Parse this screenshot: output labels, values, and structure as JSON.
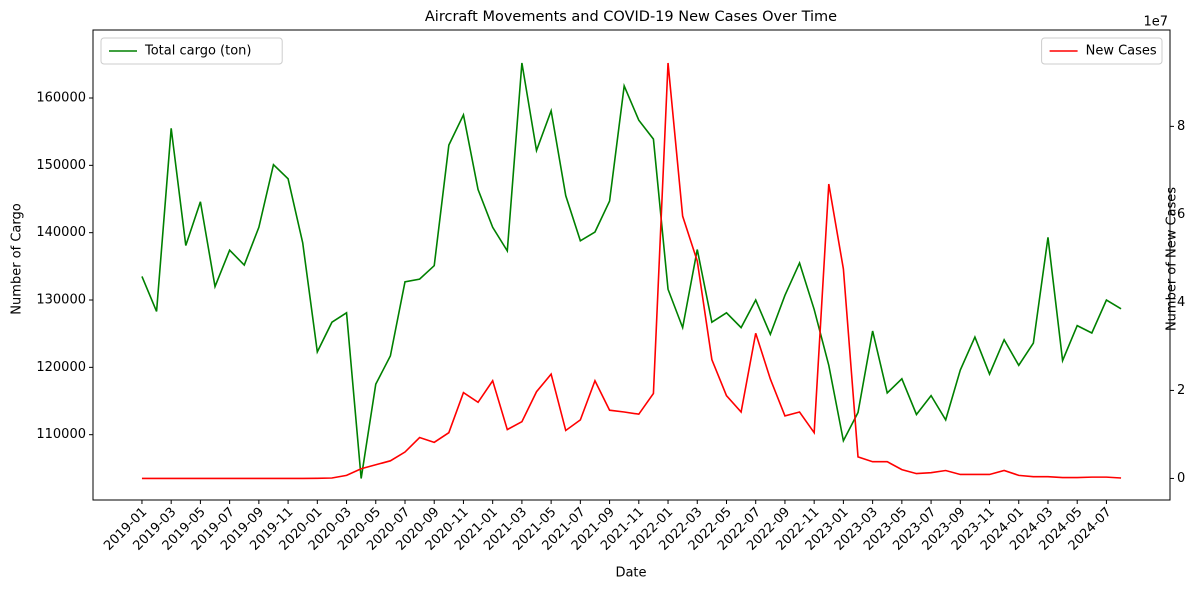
{
  "chart_data": {
    "type": "line",
    "title": "Aircraft Movements and COVID-19 New Cases Over Time",
    "xlabel": "Date",
    "ylabel": "Number of Cargo",
    "y2label": "Number of New Cases",
    "y2_offset_label": "1e7",
    "categories": [
      "2019-01",
      null,
      "2019-03",
      null,
      "2019-05",
      null,
      "2019-07",
      null,
      "2019-09",
      null,
      "2019-11",
      null,
      "2020-01",
      null,
      "2020-03",
      null,
      "2020-05",
      null,
      "2020-07",
      null,
      "2020-09",
      null,
      "2020-11",
      null,
      "2021-01",
      null,
      "2021-03",
      null,
      "2021-05",
      null,
      "2021-07",
      null,
      "2021-09",
      null,
      "2021-11",
      null,
      "2022-01",
      null,
      "2022-03",
      null,
      "2022-05",
      null,
      "2022-07",
      null,
      "2022-09",
      null,
      "2022-11",
      null,
      "2023-01",
      null,
      "2023-03",
      null,
      "2023-05",
      null,
      "2023-07",
      null,
      "2023-09",
      null,
      "2023-11",
      null,
      "2024-01",
      null,
      "2024-03",
      null,
      "2024-05",
      null,
      "2024-07",
      null
    ],
    "series": [
      {
        "name": "Total cargo (ton)",
        "color": "#008000",
        "axis": "y",
        "values": [
          133500,
          128300,
          155500,
          138100,
          144600,
          132000,
          137400,
          135200,
          140800,
          150100,
          148000,
          138500,
          122300,
          126700,
          128100,
          103500,
          117500,
          121700,
          132700,
          133100,
          135100,
          153000,
          157500,
          146400,
          140800,
          137300,
          165200,
          152200,
          158100,
          145500,
          138800,
          140100,
          144700,
          161800,
          156700,
          153900,
          131600,
          125900,
          137500,
          126700,
          128100,
          125900,
          130000,
          124900,
          130700,
          135500,
          128600,
          120300,
          109100,
          113300,
          125400,
          116200,
          118300,
          113000,
          115800,
          112200,
          119600,
          124500,
          119000,
          124100,
          120300,
          123600,
          139300,
          121000,
          126200,
          125100,
          130000,
          128700
        ]
      },
      {
        "name": "New Cases",
        "color": "#ff0000",
        "axis": "y2",
        "values": [
          0,
          0,
          0,
          0,
          0,
          0,
          0,
          0,
          0,
          0,
          0,
          0,
          20000,
          100000,
          700000,
          2200000,
          3100000,
          4000000,
          6000000,
          9300000,
          8200000,
          10400000,
          19500000,
          17300000,
          22200000,
          11100000,
          12900000,
          19700000,
          23700000,
          10900000,
          13300000,
          22200000,
          15500000,
          15100000,
          14600000,
          19300000,
          94400000,
          59600000,
          49400000,
          27000000,
          18800000,
          15100000,
          33000000,
          22600000,
          14200000,
          15100000,
          10400000,
          66900000,
          47600000,
          4900000,
          3800000,
          3800000,
          2000000,
          1100000,
          1300000,
          1800000,
          900000,
          900000,
          900000,
          1800000,
          700000,
          400000,
          400000,
          200000,
          200000,
          300000,
          300000,
          100000
        ]
      }
    ],
    "ylim": [
      100300,
      170100
    ],
    "yticks": [
      110000,
      120000,
      130000,
      140000,
      150000,
      160000
    ],
    "y2lim": [
      -4900000,
      101900000
    ],
    "y2ticks": [
      {
        "value": 0,
        "label": "0"
      },
      {
        "value": 20000000,
        "label": "2"
      },
      {
        "value": 40000000,
        "label": "4"
      },
      {
        "value": 60000000,
        "label": "6"
      },
      {
        "value": 80000000,
        "label": "8"
      }
    ],
    "grid": false,
    "legend_loc": "upper left",
    "legend2_loc": "upper right"
  }
}
